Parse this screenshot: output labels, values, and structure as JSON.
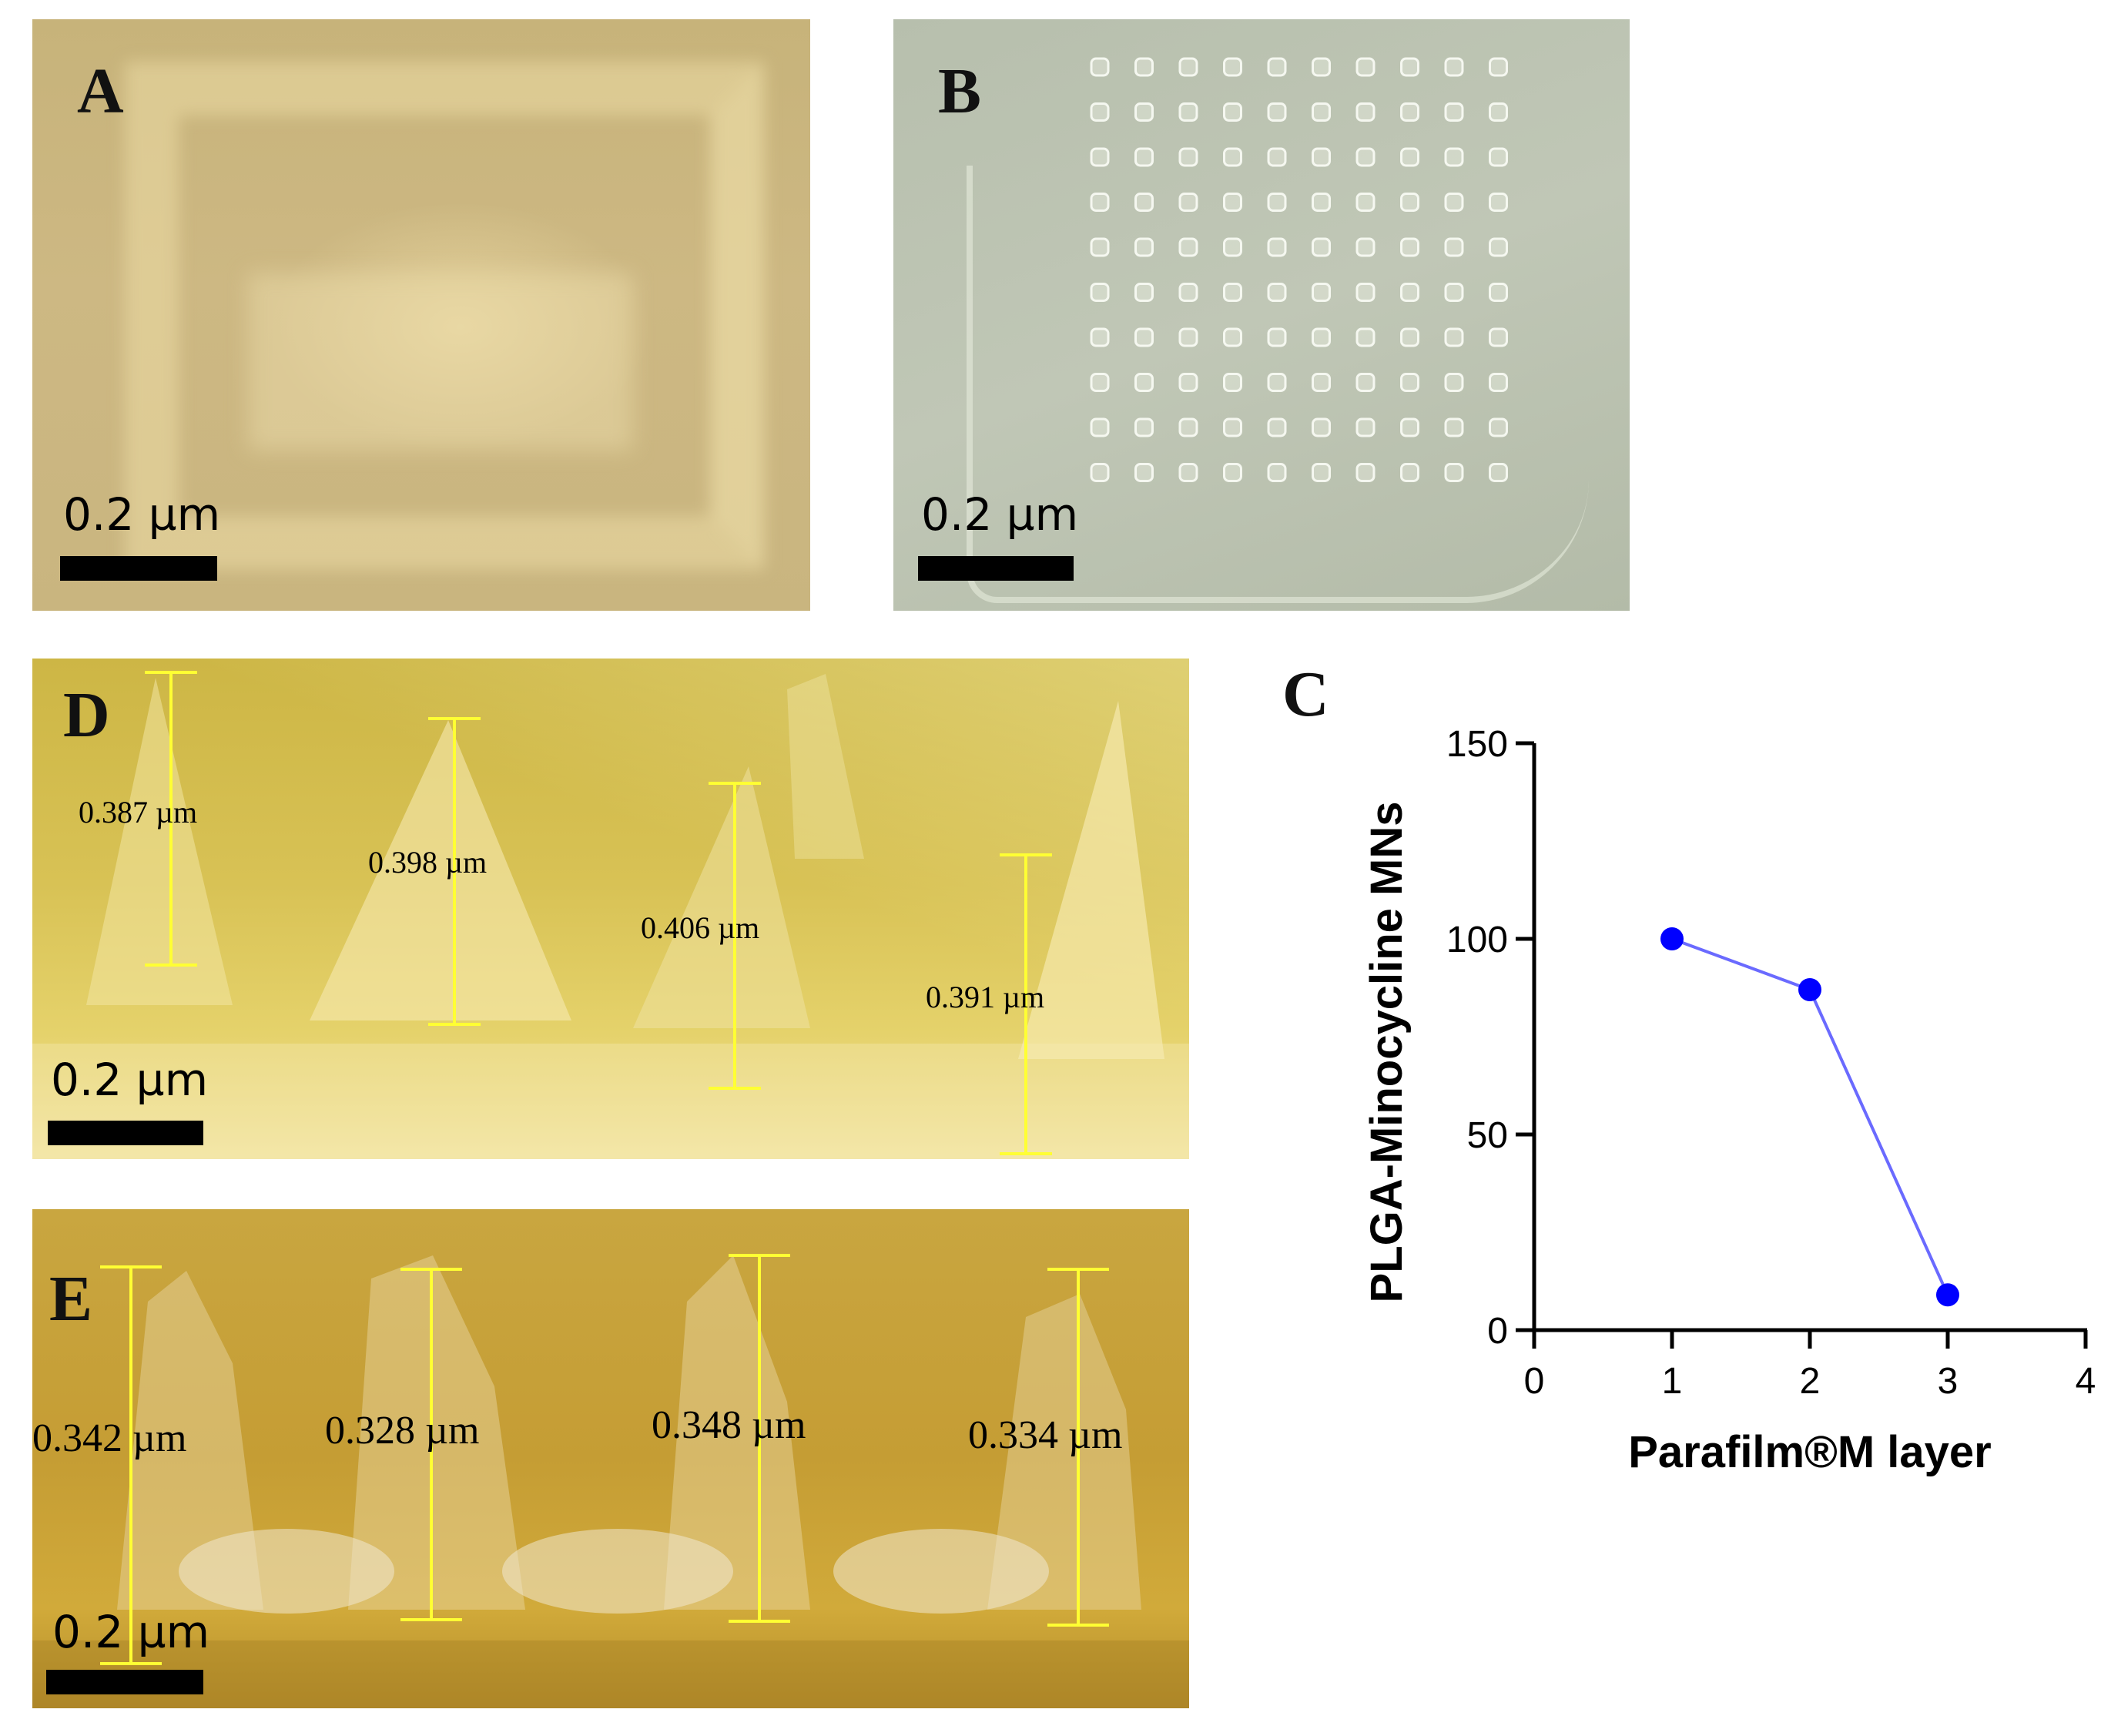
{
  "panels": {
    "a": {
      "letter": "A",
      "scale_label": "0.2 µm"
    },
    "b": {
      "letter": "B",
      "scale_label": "0.2 µm"
    },
    "c": {
      "letter": "C"
    },
    "d": {
      "letter": "D",
      "scale_label": "0.2 µm",
      "measurements": [
        "0.387 µm",
        "0.398 µm",
        "0.406 µm",
        "0.391 µm"
      ]
    },
    "e": {
      "letter": "E",
      "scale_label": "0.2 µm",
      "measurements": [
        "0.342 µm",
        "0.328 µm",
        "0.348 µm",
        "0.334 µm"
      ]
    }
  },
  "colors": {
    "series": "#0000ff",
    "series_line": "#6a6aff",
    "measure_line": "#ffff33"
  },
  "chart_data": {
    "type": "line",
    "title": "",
    "xlabel": "Parafilm®M layer",
    "ylabel": "PLGA-Minocycline MNs",
    "xlim": [
      0,
      4
    ],
    "ylim": [
      0,
      150
    ],
    "xticks": [
      0,
      1,
      2,
      3,
      4
    ],
    "yticks": [
      0,
      50,
      100,
      150
    ],
    "grid": false,
    "series": [
      {
        "x": [
          1,
          2,
          3
        ],
        "y": [
          100,
          87,
          9
        ]
      }
    ]
  }
}
